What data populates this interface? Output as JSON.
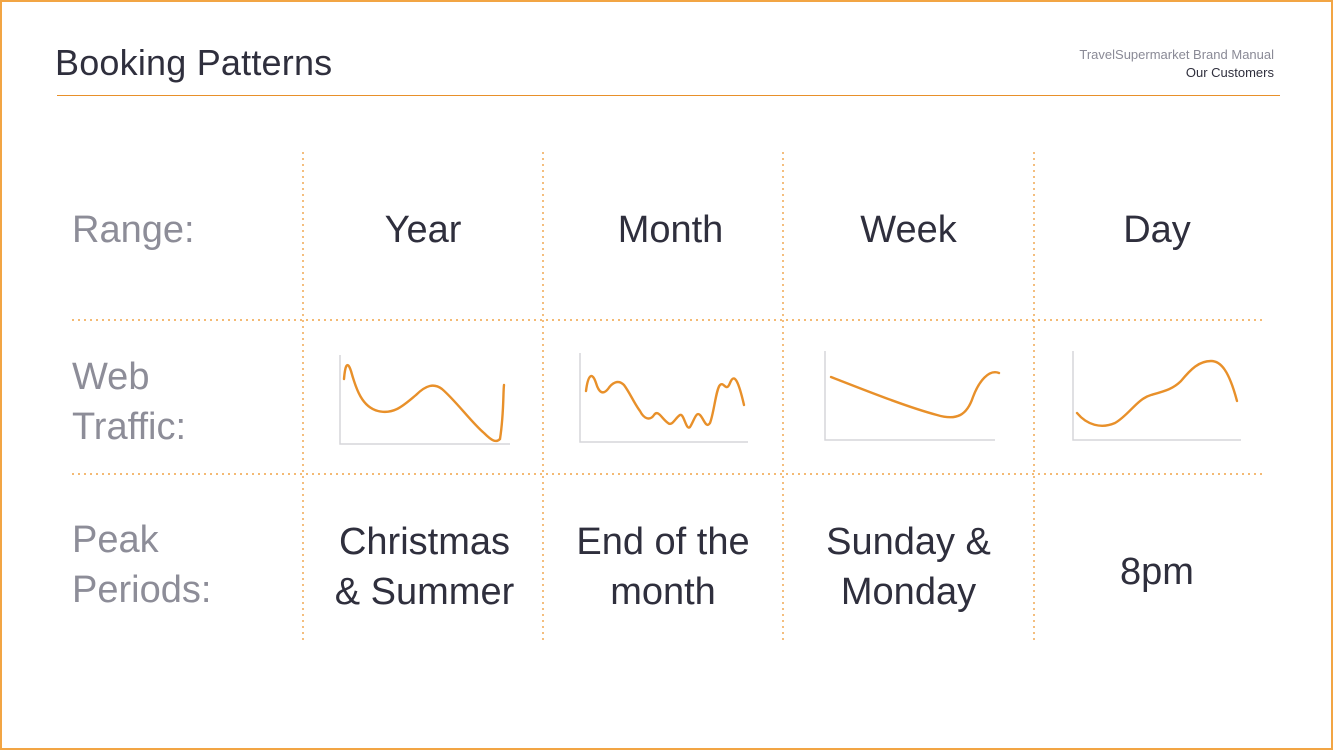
{
  "header": {
    "title": "Booking Patterns",
    "brand_line1": "TravelSupermarket Brand Manual",
    "brand_line2": "Our Customers"
  },
  "rows": {
    "range_label": "Range:",
    "traffic_label": "Web\nTraffic:",
    "peak_label": "Peak\nPeriods:"
  },
  "columns": [
    {
      "range": "Year",
      "peak": "Christmas\n& Summer",
      "sparkline_icon": "year-traffic-sparkline"
    },
    {
      "range": "Month",
      "peak": "End of the\nmonth",
      "sparkline_icon": "month-traffic-sparkline"
    },
    {
      "range": "Week",
      "peak": "Sunday &\nMonday",
      "sparkline_icon": "week-traffic-sparkline"
    },
    {
      "range": "Day",
      "peak": "8pm",
      "sparkline_icon": "day-traffic-sparkline"
    }
  ],
  "colors": {
    "accent": "#e8902a",
    "border": "#f2a544",
    "text_dark": "#2f2f3d",
    "text_muted": "#8d8d98",
    "axis": "#d6d6da"
  }
}
